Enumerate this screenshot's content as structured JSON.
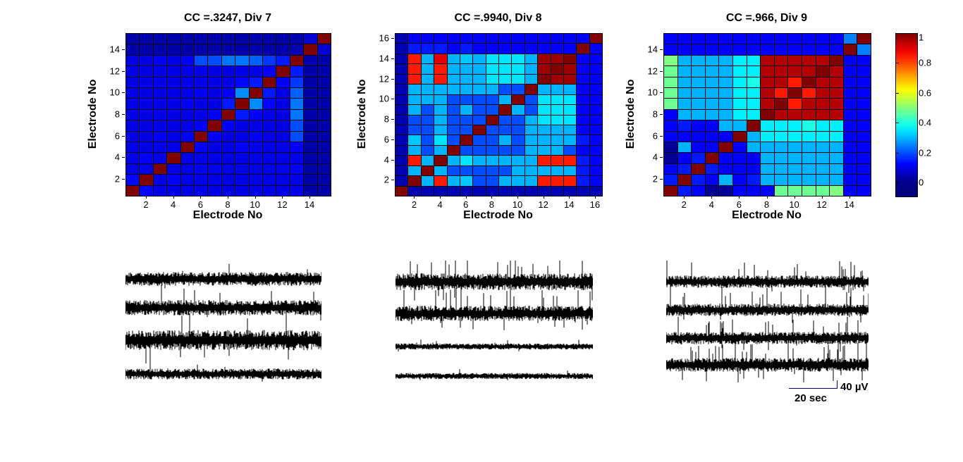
{
  "chart_data": {
    "type": "heatmap",
    "colormap": "jet",
    "value_range": [
      0,
      1
    ],
    "rows_order": "matrix rows listed bottom-to-top (electrode 1 first)",
    "heatmaps": [
      {
        "title": "CC =.3247, Div 7",
        "xlabel": "Electrode No",
        "ylabel": "Electrode No",
        "size": 15,
        "x_ticks": [
          2,
          4,
          6,
          8,
          10,
          12,
          14
        ],
        "y_ticks": [
          2,
          4,
          6,
          8,
          10,
          12,
          14
        ],
        "matrix": [
          [
            1,
            0.13,
            0.1,
            0.1,
            0.1,
            0.1,
            0.1,
            0.1,
            0.1,
            0.1,
            0.1,
            0.1,
            0.1,
            0.04,
            0.04
          ],
          [
            0.13,
            1,
            0.1,
            0.12,
            0.1,
            0.1,
            0.1,
            0.1,
            0.1,
            0.1,
            0.1,
            0.1,
            0.1,
            0.04,
            0.04
          ],
          [
            0.1,
            0.1,
            1,
            0.1,
            0.1,
            0.12,
            0.1,
            0.1,
            0.1,
            0.1,
            0.1,
            0.1,
            0.12,
            0.04,
            0.04
          ],
          [
            0.1,
            0.12,
            0.1,
            1,
            0.1,
            0.1,
            0.1,
            0.1,
            0.1,
            0.1,
            0.1,
            0.1,
            0.1,
            0.04,
            0.04
          ],
          [
            0.1,
            0.1,
            0.1,
            0.1,
            1,
            0.12,
            0.1,
            0.1,
            0.12,
            0.1,
            0.1,
            0.1,
            0.12,
            0.04,
            0.04
          ],
          [
            0.1,
            0.1,
            0.12,
            0.1,
            0.12,
            1,
            0.12,
            0.1,
            0.1,
            0.12,
            0.1,
            0.1,
            0.2,
            0.04,
            0.04
          ],
          [
            0.1,
            0.1,
            0.1,
            0.1,
            0.1,
            0.12,
            1,
            0.12,
            0.1,
            0.1,
            0.1,
            0.1,
            0.2,
            0.04,
            0.04
          ],
          [
            0.1,
            0.1,
            0.1,
            0.1,
            0.1,
            0.1,
            0.12,
            1,
            0.15,
            0.12,
            0.1,
            0.1,
            0.24,
            0.04,
            0.04
          ],
          [
            0.1,
            0.1,
            0.1,
            0.1,
            0.12,
            0.1,
            0.1,
            0.15,
            1,
            0.26,
            0.13,
            0.1,
            0.24,
            0.04,
            0.04
          ],
          [
            0.1,
            0.1,
            0.1,
            0.1,
            0.1,
            0.12,
            0.1,
            0.12,
            0.26,
            1,
            0.15,
            0.1,
            0.22,
            0.04,
            0.04
          ],
          [
            0.1,
            0.1,
            0.1,
            0.1,
            0.1,
            0.1,
            0.1,
            0.1,
            0.13,
            0.15,
            1,
            0.12,
            0.18,
            0.04,
            0.04
          ],
          [
            0.1,
            0.1,
            0.1,
            0.1,
            0.1,
            0.1,
            0.1,
            0.1,
            0.1,
            0.1,
            0.12,
            1,
            0.15,
            0.04,
            0.04
          ],
          [
            0.1,
            0.1,
            0.12,
            0.1,
            0.12,
            0.2,
            0.2,
            0.24,
            0.24,
            0.22,
            0.18,
            0.15,
            1,
            0.05,
            0.04
          ],
          [
            0.04,
            0.04,
            0.04,
            0.04,
            0.04,
            0.04,
            0.04,
            0.04,
            0.04,
            0.04,
            0.04,
            0.04,
            0.05,
            1,
            0.08
          ],
          [
            0.04,
            0.04,
            0.04,
            0.04,
            0.04,
            0.04,
            0.04,
            0.04,
            0.04,
            0.04,
            0.04,
            0.04,
            0.04,
            0.08,
            1
          ]
        ]
      },
      {
        "title": "CC =.9940, Div 8",
        "xlabel": "Electrode No",
        "ylabel": "Electrode No",
        "size": 16,
        "x_ticks": [
          2,
          4,
          6,
          8,
          10,
          12,
          14,
          16
        ],
        "y_ticks": [
          2,
          4,
          6,
          8,
          10,
          12,
          14,
          16
        ],
        "matrix": [
          [
            1,
            0.05,
            0.05,
            0.05,
            0.05,
            0.05,
            0.05,
            0.05,
            0.05,
            0.05,
            0.05,
            0.05,
            0.05,
            0.05,
            0.05,
            0.05
          ],
          [
            0.05,
            1,
            0.3,
            0.85,
            0.3,
            0.32,
            0.2,
            0.2,
            0.3,
            0.3,
            0.3,
            0.85,
            0.85,
            0.85,
            0.15,
            0.12
          ],
          [
            0.05,
            0.3,
            1,
            0.3,
            0.2,
            0.2,
            0.2,
            0.2,
            0.2,
            0.3,
            0.3,
            0.3,
            0.3,
            0.3,
            0.15,
            0.12
          ],
          [
            0.05,
            0.85,
            0.3,
            1,
            0.3,
            0.35,
            0.3,
            0.3,
            0.3,
            0.3,
            0.3,
            0.85,
            0.85,
            0.85,
            0.15,
            0.12
          ],
          [
            0.05,
            0.3,
            0.2,
            0.3,
            1,
            0.2,
            0.2,
            0.2,
            0.2,
            0.2,
            0.3,
            0.3,
            0.3,
            0.2,
            0.12,
            0.12
          ],
          [
            0.05,
            0.32,
            0.2,
            0.35,
            0.2,
            1,
            0.2,
            0.2,
            0.3,
            0.2,
            0.3,
            0.3,
            0.3,
            0.3,
            0.15,
            0.12
          ],
          [
            0.05,
            0.2,
            0.2,
            0.3,
            0.2,
            0.2,
            1,
            0.2,
            0.2,
            0.2,
            0.3,
            0.3,
            0.3,
            0.3,
            0.12,
            0.12
          ],
          [
            0.05,
            0.2,
            0.2,
            0.3,
            0.2,
            0.2,
            0.2,
            1,
            0.2,
            0.2,
            0.3,
            0.35,
            0.35,
            0.35,
            0.12,
            0.12
          ],
          [
            0.05,
            0.3,
            0.2,
            0.3,
            0.2,
            0.3,
            0.2,
            0.2,
            1,
            0.3,
            0.2,
            0.35,
            0.35,
            0.35,
            0.12,
            0.12
          ],
          [
            0.05,
            0.3,
            0.3,
            0.3,
            0.2,
            0.2,
            0.2,
            0.2,
            0.3,
            1,
            0.2,
            0.35,
            0.35,
            0.35,
            0.12,
            0.12
          ],
          [
            0.05,
            0.3,
            0.3,
            0.3,
            0.3,
            0.3,
            0.3,
            0.3,
            0.2,
            0.2,
            1,
            0.3,
            0.3,
            0.3,
            0.12,
            0.12
          ],
          [
            0.05,
            0.85,
            0.3,
            0.85,
            0.3,
            0.3,
            0.3,
            0.35,
            0.35,
            0.35,
            0.3,
            1,
            0.97,
            0.97,
            0.12,
            0.12
          ],
          [
            0.05,
            0.85,
            0.3,
            0.85,
            0.3,
            0.3,
            0.3,
            0.35,
            0.35,
            0.35,
            0.3,
            0.97,
            1,
            0.97,
            0.12,
            0.12
          ],
          [
            0.05,
            0.85,
            0.3,
            0.9,
            0.3,
            0.32,
            0.3,
            0.35,
            0.35,
            0.35,
            0.3,
            0.97,
            0.97,
            1,
            0.12,
            0.12
          ],
          [
            0.05,
            0.15,
            0.15,
            0.15,
            0.12,
            0.15,
            0.12,
            0.12,
            0.12,
            0.12,
            0.12,
            0.12,
            0.12,
            0.12,
            1,
            0.12
          ],
          [
            0.05,
            0.12,
            0.12,
            0.12,
            0.12,
            0.12,
            0.12,
            0.12,
            0.12,
            0.12,
            0.12,
            0.12,
            0.12,
            0.12,
            0.12,
            1
          ]
        ]
      },
      {
        "title": "CC =.966, Div 9",
        "xlabel": "Electrode No",
        "ylabel": "Electrode No",
        "size": 15,
        "x_ticks": [
          2,
          4,
          6,
          8,
          10,
          12,
          14
        ],
        "y_ticks": [
          2,
          4,
          6,
          8,
          10,
          12,
          14
        ],
        "matrix": [
          [
            1,
            0.15,
            0.12,
            0.02,
            0.02,
            0.12,
            0.12,
            0.12,
            0.48,
            0.48,
            0.48,
            0.48,
            0.5,
            0.12,
            0.12
          ],
          [
            0.15,
            1,
            0.15,
            0.12,
            0.3,
            0.12,
            0.15,
            0.3,
            0.3,
            0.3,
            0.3,
            0.3,
            0.3,
            0.12,
            0.12
          ],
          [
            0.12,
            0.15,
            1,
            0.15,
            0.12,
            0.12,
            0.12,
            0.3,
            0.3,
            0.3,
            0.3,
            0.3,
            0.3,
            0.12,
            0.12
          ],
          [
            0.02,
            0.12,
            0.15,
            1,
            0.12,
            0.12,
            0.12,
            0.3,
            0.3,
            0.3,
            0.3,
            0.3,
            0.3,
            0.12,
            0.12
          ],
          [
            0.02,
            0.3,
            0.12,
            0.12,
            1,
            0.12,
            0.3,
            0.3,
            0.3,
            0.3,
            0.3,
            0.3,
            0.3,
            0.12,
            0.12
          ],
          [
            0.12,
            0.12,
            0.12,
            0.12,
            0.12,
            1,
            0.3,
            0.36,
            0.36,
            0.36,
            0.36,
            0.36,
            0.36,
            0.12,
            0.12
          ],
          [
            0.12,
            0.15,
            0.12,
            0.12,
            0.3,
            0.3,
            1,
            0.36,
            0.36,
            0.36,
            0.4,
            0.36,
            0.36,
            0.12,
            0.12
          ],
          [
            0.12,
            0.3,
            0.3,
            0.3,
            0.3,
            0.36,
            0.36,
            1,
            0.95,
            0.95,
            0.95,
            0.95,
            0.95,
            0.12,
            0.12
          ],
          [
            0.48,
            0.3,
            0.3,
            0.3,
            0.3,
            0.36,
            0.36,
            0.95,
            1,
            0.85,
            0.95,
            0.95,
            0.95,
            0.12,
            0.12
          ],
          [
            0.48,
            0.3,
            0.3,
            0.3,
            0.3,
            0.36,
            0.36,
            0.95,
            0.85,
            1,
            0.85,
            0.95,
            0.95,
            0.12,
            0.12
          ],
          [
            0.48,
            0.3,
            0.3,
            0.3,
            0.3,
            0.36,
            0.4,
            0.95,
            0.95,
            0.85,
            1,
            0.95,
            0.95,
            0.12,
            0.12
          ],
          [
            0.48,
            0.3,
            0.3,
            0.3,
            0.3,
            0.36,
            0.36,
            0.95,
            0.95,
            0.95,
            0.95,
            1,
            0.95,
            0.12,
            0.12
          ],
          [
            0.5,
            0.3,
            0.3,
            0.3,
            0.3,
            0.36,
            0.36,
            0.95,
            0.95,
            0.95,
            0.95,
            0.95,
            1,
            0.12,
            0.12
          ],
          [
            0.12,
            0.12,
            0.12,
            0.12,
            0.12,
            0.12,
            0.12,
            0.12,
            0.12,
            0.12,
            0.12,
            0.12,
            0.12,
            1,
            0.25
          ],
          [
            0.12,
            0.12,
            0.12,
            0.12,
            0.12,
            0.12,
            0.12,
            0.12,
            0.12,
            0.12,
            0.12,
            0.12,
            0.12,
            0.25,
            1
          ]
        ]
      }
    ],
    "colorbar": {
      "orientation": "vertical",
      "tick_labels": [
        "1",
        "0.8",
        "0.6",
        "0.4",
        "0.2",
        "0"
      ],
      "tick_values": [
        1,
        0.8,
        0.6,
        0.4,
        0.2,
        0
      ]
    },
    "traces": {
      "description": "voltage noise traces, 4 per panel, black",
      "color": "#000000",
      "columns": [
        {
          "panel": "Div 7",
          "traces": [
            {
              "band": 9,
              "up": 18,
              "down": 10,
              "upRate": 0.015,
              "downRate": 0.01,
              "seed": 101
            },
            {
              "band": 10,
              "up": 26,
              "down": 12,
              "upRate": 0.02,
              "downRate": 0.015,
              "seed": 102
            },
            {
              "band": 13,
              "up": 38,
              "down": 30,
              "upRate": 0.03,
              "downRate": 0.02,
              "seed": 103
            },
            {
              "band": 7,
              "up": 10,
              "down": 8,
              "upRate": 0.015,
              "downRate": 0.01,
              "seed": 104
            }
          ]
        },
        {
          "panel": "Div 8",
          "traces": [
            {
              "band": 11,
              "up": 34,
              "down": 16,
              "upRate": 0.05,
              "downRate": 0.02,
              "seed": 201
            },
            {
              "band": 10,
              "up": 30,
              "down": 18,
              "upRate": 0.05,
              "downRate": 0.03,
              "seed": 202
            },
            {
              "band": 4,
              "up": 7,
              "down": 5,
              "upRate": 0.02,
              "downRate": 0.01,
              "seed": 203
            },
            {
              "band": 4,
              "up": 8,
              "down": 5,
              "upRate": 0.01,
              "downRate": 0.01,
              "seed": 204
            }
          ]
        },
        {
          "panel": "Div 9",
          "traces": [
            {
              "band": 8,
              "up": 26,
              "down": 12,
              "upRate": 0.07,
              "downRate": 0.03,
              "seed": 301
            },
            {
              "band": 8,
              "up": 28,
              "down": 14,
              "upRate": 0.08,
              "downRate": 0.03,
              "seed": 302
            },
            {
              "band": 8,
              "up": 24,
              "down": 12,
              "upRate": 0.07,
              "downRate": 0.03,
              "seed": 303
            },
            {
              "band": 9,
              "up": 30,
              "down": 18,
              "upRate": 0.09,
              "downRate": 0.04,
              "seed": 304
            }
          ]
        }
      ]
    },
    "scalebar": {
      "voltage": "40 µV",
      "time": "20 sec"
    }
  }
}
